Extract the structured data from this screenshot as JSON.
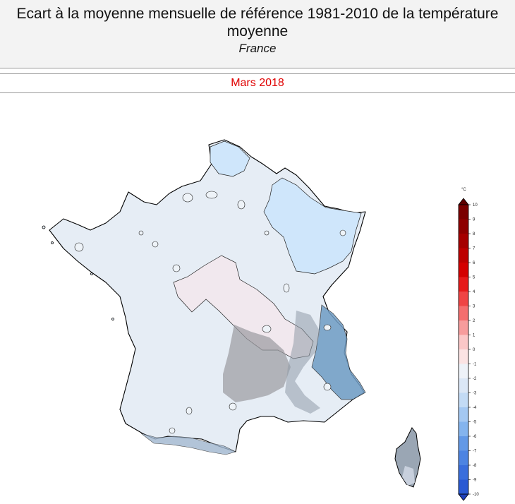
{
  "header": {
    "title": "Ecart à la moyenne mensuelle de référence 1981-2010 de la température moyenne",
    "region": "France"
  },
  "period": {
    "label": "Mars 2018",
    "color": "#e00000"
  },
  "legend": {
    "unit": "°C",
    "ticks": [
      10,
      9,
      8,
      7,
      6,
      5,
      4,
      3,
      2,
      1,
      0,
      -1,
      -2,
      -3,
      -4,
      -5,
      -6,
      -7,
      -8,
      -9,
      -10
    ],
    "bands": [
      "#7a0000",
      "#8e0000",
      "#a50000",
      "#bd0000",
      "#d40000",
      "#e61a1a",
      "#ef4444",
      "#f46e6e",
      "#f79c9c",
      "#fbc7c7",
      "#fbe3e3",
      "#eef2f8",
      "#dbe7f6",
      "#c3dbf5",
      "#a4c8f2",
      "#84b4ee",
      "#6399e6",
      "#4d84e2",
      "#3a6edc",
      "#2a59d3"
    ]
  },
  "map_colors": {
    "cool_light": "#dbe8f6",
    "cool_base": "#e6edf5",
    "cool_mid": "#cfe6fb",
    "neutral_pink": "#f1e8ee",
    "relief_gray": "#9a9aa0",
    "alpine_blue": "#6f9cc4"
  }
}
